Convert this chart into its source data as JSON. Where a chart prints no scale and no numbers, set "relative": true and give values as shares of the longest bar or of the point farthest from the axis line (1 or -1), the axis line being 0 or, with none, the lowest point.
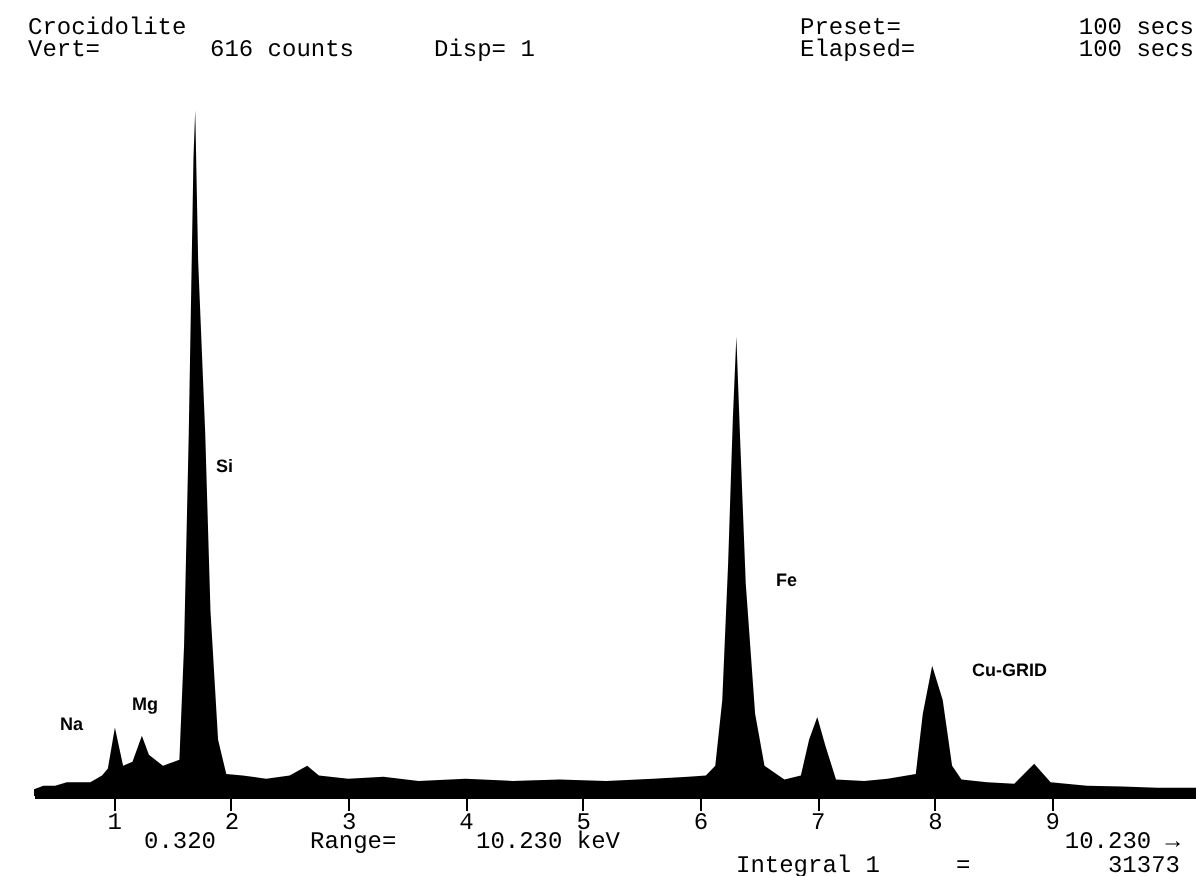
{
  "chart_data": {
    "type": "area",
    "title": "Crocidolite",
    "relative": true,
    "x": [
      0.32,
      0.4,
      0.5,
      0.6,
      0.7,
      0.8,
      0.9,
      0.95,
      1.01,
      1.08,
      1.16,
      1.24,
      1.3,
      1.42,
      1.56,
      1.6,
      1.64,
      1.68,
      1.695,
      1.72,
      1.78,
      1.825,
      1.89,
      1.96,
      2.1,
      2.3,
      2.5,
      2.65,
      2.75,
      3.0,
      3.3,
      3.6,
      4.0,
      4.4,
      4.8,
      5.2,
      5.6,
      5.9,
      6.05,
      6.13,
      6.19,
      6.24,
      6.28,
      6.31,
      6.34,
      6.39,
      6.47,
      6.55,
      6.72,
      6.86,
      6.93,
      7.0,
      7.07,
      7.16,
      7.4,
      7.6,
      7.84,
      7.9,
      7.98,
      8.07,
      8.15,
      8.23,
      8.45,
      8.68,
      8.85,
      8.99,
      9.3,
      9.6,
      9.9,
      10.23
    ],
    "series": [
      {
        "color": "#000000",
        "values": [
          0.01,
          0.015,
          0.015,
          0.02,
          0.02,
          0.02,
          0.03,
          0.04,
          0.1,
          0.044,
          0.05,
          0.088,
          0.06,
          0.044,
          0.053,
          0.22,
          0.53,
          0.93,
          1.0,
          0.78,
          0.53,
          0.27,
          0.082,
          0.032,
          0.03,
          0.025,
          0.03,
          0.044,
          0.03,
          0.025,
          0.028,
          0.022,
          0.025,
          0.022,
          0.024,
          0.022,
          0.025,
          0.028,
          0.03,
          0.044,
          0.14,
          0.34,
          0.55,
          0.67,
          0.53,
          0.31,
          0.12,
          0.044,
          0.024,
          0.03,
          0.082,
          0.115,
          0.073,
          0.024,
          0.022,
          0.025,
          0.032,
          0.12,
          0.19,
          0.14,
          0.044,
          0.024,
          0.02,
          0.018,
          0.047,
          0.02,
          0.015,
          0.014,
          0.012,
          0.012
        ]
      }
    ],
    "xlim": [
      0.32,
      10.23
    ],
    "xticks": [
      1,
      2,
      3,
      4,
      5,
      6,
      7,
      8,
      9
    ],
    "grid": false,
    "annotations": [
      "Na",
      "Mg",
      "Si",
      "Fe",
      "Cu-GRID",
      "Vert=",
      "616 counts",
      "Disp= 1",
      "Preset=",
      "100 secs",
      "Elapsed=",
      "100 secs",
      "0.320",
      "Range=",
      "10.230 keV",
      "10.230 →",
      "Integral 1",
      "=",
      "31373"
    ]
  }
}
